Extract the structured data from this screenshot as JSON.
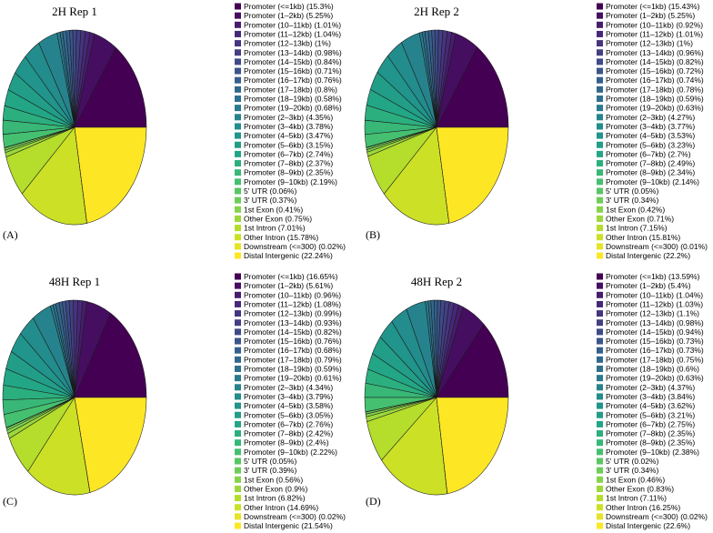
{
  "palette": {
    "viridis_anchors": [
      "#440154",
      "#482576",
      "#414487",
      "#35608D",
      "#2A788E",
      "#21908C",
      "#22A884",
      "#43BF71",
      "#7AD151",
      "#BBDF27",
      "#FDE725"
    ],
    "slice_border": "#1a1a1a"
  },
  "chart_data": [
    {
      "type": "pie",
      "panel": "(A)",
      "title": "2H Rep 1",
      "legend": "right",
      "categories": [
        "Promoter (<=1kb)",
        "Promoter (1–2kb)",
        "Promoter (10–11kb)",
        "Promoter (11–12kb)",
        "Promoter (12–13kb)",
        "Promoter (13–14kb)",
        "Promoter (14–15kb)",
        "Promoter (15–16kb)",
        "Promoter (16–17kb)",
        "Promoter (17–18kb)",
        "Promoter (18–19kb)",
        "Promoter (19–20kb)",
        "Promoter (2–3kb)",
        "Promoter (3–4kb)",
        "Promoter (4–5kb)",
        "Promoter (5–6kb)",
        "Promoter (6–7kb)",
        "Promoter (7–8kb)",
        "Promoter (8–9kb)",
        "Promoter (9–10kb)",
        "5' UTR",
        "3' UTR",
        "1st Exon",
        "Other Exon",
        "1st Intron",
        "Other Intron",
        "Downstream (<=300)",
        "Distal Intergenic"
      ],
      "values": [
        15.3,
        5.25,
        1.01,
        1.04,
        1,
        0.98,
        0.84,
        0.71,
        0.76,
        0.8,
        0.58,
        0.68,
        4.35,
        3.78,
        3.47,
        3.15,
        2.74,
        2.37,
        2.35,
        2.19,
        0.06,
        0.37,
        0.41,
        0.75,
        7.01,
        15.78,
        0.02,
        22.24
      ]
    },
    {
      "type": "pie",
      "panel": "(B)",
      "title": "2H Rep 2",
      "legend": "right",
      "categories": [
        "Promoter (<=1kb)",
        "Promoter (1–2kb)",
        "Promoter (10–11kb)",
        "Promoter (11–12kb)",
        "Promoter (12–13kb)",
        "Promoter (13–14kb)",
        "Promoter (14–15kb)",
        "Promoter (15–16kb)",
        "Promoter (16–17kb)",
        "Promoter (17–18kb)",
        "Promoter (18–19kb)",
        "Promoter (19–20kb)",
        "Promoter (2–3kb)",
        "Promoter (3–4kb)",
        "Promoter (4–5kb)",
        "Promoter (5–6kb)",
        "Promoter (6–7kb)",
        "Promoter (7–8kb)",
        "Promoter (8–9kb)",
        "Promoter (9–10kb)",
        "5' UTR",
        "3' UTR",
        "1st Exon",
        "Other Exon",
        "1st Intron",
        "Other Intron",
        "Downstream (<=300)",
        "Distal Intergenic"
      ],
      "values": [
        15.43,
        5.25,
        0.92,
        1.01,
        1,
        0.96,
        0.82,
        0.72,
        0.74,
        0.78,
        0.59,
        0.63,
        4.27,
        3.77,
        3.53,
        3.23,
        2.7,
        2.49,
        2.34,
        2.14,
        0.05,
        0.34,
        0.42,
        0.71,
        7.15,
        15.81,
        0.01,
        22.2
      ]
    },
    {
      "type": "pie",
      "panel": "(C)",
      "title": "48H Rep 1",
      "legend": "right",
      "categories": [
        "Promoter (<=1kb)",
        "Promoter (1–2kb)",
        "Promoter (10–11kb)",
        "Promoter (11–12kb)",
        "Promoter (12–13kb)",
        "Promoter (13–14kb)",
        "Promoter (14–15kb)",
        "Promoter (15–16kb)",
        "Promoter (16–17kb)",
        "Promoter (17–18kb)",
        "Promoter (18–19kb)",
        "Promoter (19–20kb)",
        "Promoter (2–3kb)",
        "Promoter (3–4kb)",
        "Promoter (4–5kb)",
        "Promoter (5–6kb)",
        "Promoter (6–7kb)",
        "Promoter (7–8kb)",
        "Promoter (8–9kb)",
        "Promoter (9–10kb)",
        "5' UTR",
        "3' UTR",
        "1st Exon",
        "Other Exon",
        "1st Intron",
        "Other Intron",
        "Downstream (<=300)",
        "Distal Intergenic"
      ],
      "values": [
        16.65,
        5.61,
        0.96,
        1.08,
        0.99,
        0.93,
        0.82,
        0.76,
        0.68,
        0.79,
        0.59,
        0.61,
        4.34,
        3.79,
        3.58,
        3.05,
        2.76,
        2.42,
        2.4,
        2.22,
        0.05,
        0.39,
        0.56,
        0.9,
        6.82,
        14.69,
        0.02,
        21.54
      ]
    },
    {
      "type": "pie",
      "panel": "(D)",
      "title": "48H Rep 2",
      "legend": "right",
      "categories": [
        "Promoter (<=1kb)",
        "Promoter (1–2kb)",
        "Promoter (10–11kb)",
        "Promoter (11–12kb)",
        "Promoter (12–13kb)",
        "Promoter (13–14kb)",
        "Promoter (14–15kb)",
        "Promoter (15–16kb)",
        "Promoter (16–17kb)",
        "Promoter (17–18kb)",
        "Promoter (18–19kb)",
        "Promoter (19–20kb)",
        "Promoter (2–3kb)",
        "Promoter (3–4kb)",
        "Promoter (4–5kb)",
        "Promoter (5–6kb)",
        "Promoter (6–7kb)",
        "Promoter (7–8kb)",
        "Promoter (8–9kb)",
        "Promoter (9–10kb)",
        "5' UTR",
        "3' UTR",
        "1st Exon",
        "Other Exon",
        "1st Intron",
        "Other Intron",
        "Downstream (<=300)",
        "Distal Intergenic"
      ],
      "values": [
        13.59,
        5.4,
        1.04,
        1.03,
        1.1,
        0.98,
        0.94,
        0.73,
        0.73,
        0.75,
        0.6,
        0.63,
        4.37,
        3.84,
        3.62,
        3.21,
        2.75,
        2.35,
        2.35,
        2.38,
        0.02,
        0.34,
        0.46,
        0.83,
        7.11,
        16.25,
        0.02,
        22.6
      ]
    }
  ]
}
